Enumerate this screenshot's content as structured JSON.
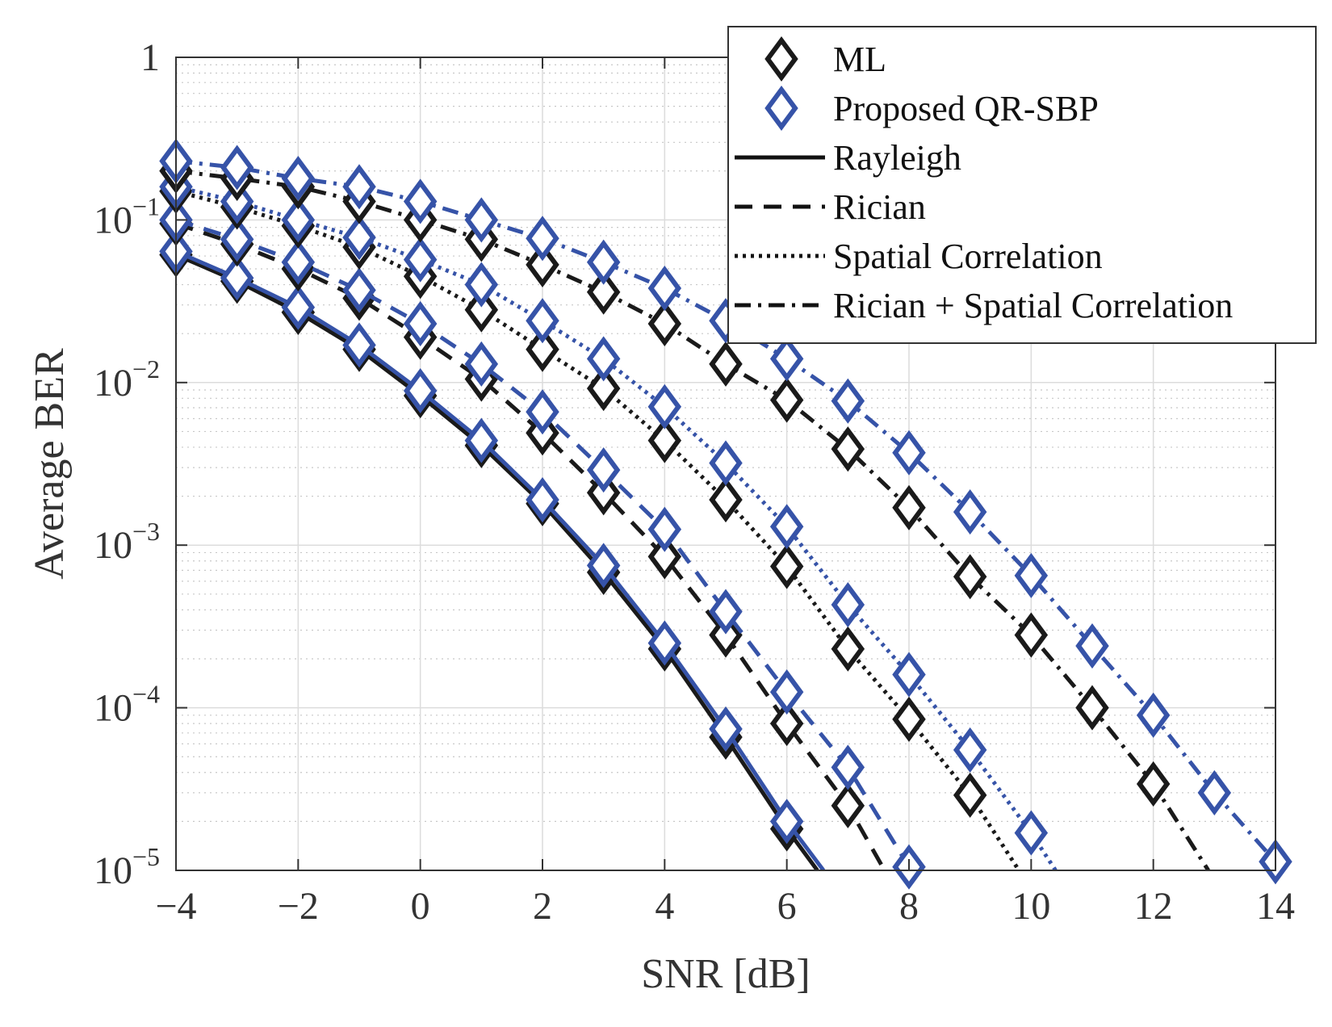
{
  "chart_data": {
    "type": "line",
    "xlabel": "SNR [dB]",
    "ylabel": "Average BER",
    "xlim": [
      -4,
      14
    ],
    "ylim": [
      1e-05,
      1
    ],
    "yscale": "log",
    "grid": true,
    "minor_grid": true,
    "legend_position": "top-right",
    "xticks": [
      -4,
      -2,
      0,
      2,
      4,
      6,
      8,
      10,
      12,
      14
    ],
    "xtick_labels": [
      "−4",
      "−2",
      "0",
      "2",
      "4",
      "6",
      "8",
      "10",
      "12",
      "14"
    ],
    "yticks": [
      {
        "value": 1,
        "base": "1",
        "exp": ""
      },
      {
        "value": 0.1,
        "base": "10",
        "exp": "−1"
      },
      {
        "value": 0.01,
        "base": "10",
        "exp": "−2"
      },
      {
        "value": 0.001,
        "base": "10",
        "exp": "−3"
      },
      {
        "value": 0.0001,
        "base": "10",
        "exp": "−4"
      },
      {
        "value": 1e-05,
        "base": "10",
        "exp": "−5"
      }
    ],
    "legend": [
      {
        "label": "ML",
        "kind": "marker",
        "color": "#1a1a1a"
      },
      {
        "label": "Proposed QR-SBP",
        "kind": "marker",
        "color": "#3653a8"
      },
      {
        "label": "Rayleigh",
        "kind": "line",
        "dash": "solid"
      },
      {
        "label": "Rician",
        "kind": "line",
        "dash": "dashed"
      },
      {
        "label": "Spatial Correlation",
        "kind": "line",
        "dash": "dotted"
      },
      {
        "label": "Rician + Spatial Correlation",
        "kind": "line",
        "dash": "dashdot"
      }
    ],
    "series": [
      {
        "detector": "ML",
        "channel": "Rayleigh",
        "color": "#1a1a1a",
        "dash": "solid",
        "x": [
          -4,
          -3,
          -2,
          -1,
          0,
          1,
          2,
          3,
          4,
          5,
          6,
          6.5
        ],
        "y": [
          0.061,
          0.042,
          0.027,
          0.016,
          0.0083,
          0.0041,
          0.0018,
          0.00068,
          0.00023,
          6.6e-05,
          1.8e-05,
          1e-05
        ],
        "markers": 11
      },
      {
        "detector": "Proposed QR-SBP",
        "channel": "Rayleigh",
        "color": "#3653a8",
        "dash": "solid",
        "x": [
          -4,
          -3,
          -2,
          -1,
          0,
          1,
          2,
          3,
          4,
          5,
          6,
          6.6
        ],
        "y": [
          0.064,
          0.044,
          0.029,
          0.017,
          0.0089,
          0.0044,
          0.0019,
          0.00075,
          0.00025,
          7.4e-05,
          2e-05,
          1e-05
        ],
        "markers": 11
      },
      {
        "detector": "ML",
        "channel": "Rician",
        "color": "#1a1a1a",
        "dash": "dashed",
        "x": [
          -4,
          -3,
          -2,
          -1,
          0,
          1,
          2,
          3,
          4,
          5,
          6,
          7,
          7.6
        ],
        "y": [
          0.095,
          0.071,
          0.05,
          0.033,
          0.019,
          0.0105,
          0.0049,
          0.0021,
          0.00085,
          0.00028,
          8e-05,
          2.5e-05,
          1e-05
        ],
        "markers": 12
      },
      {
        "detector": "Proposed QR-SBP",
        "channel": "Rician",
        "color": "#3653a8",
        "dash": "dashed",
        "x": [
          -4,
          -3,
          -2,
          -1,
          0,
          1,
          2,
          3,
          4,
          5,
          6,
          7,
          8
        ],
        "y": [
          0.1,
          0.076,
          0.055,
          0.037,
          0.023,
          0.013,
          0.0066,
          0.0029,
          0.00125,
          0.00039,
          0.000125,
          4.3e-05,
          1.05e-05
        ],
        "markers": 13
      },
      {
        "detector": "ML",
        "channel": "Spatial Correlation",
        "color": "#1a1a1a",
        "dash": "dotted",
        "x": [
          -4,
          -3,
          -2,
          -1,
          0,
          1,
          2,
          3,
          4,
          5,
          6,
          7,
          8,
          9,
          9.8
        ],
        "y": [
          0.15,
          0.12,
          0.092,
          0.068,
          0.045,
          0.028,
          0.016,
          0.0092,
          0.0044,
          0.0019,
          0.00074,
          0.00023,
          8.5e-05,
          2.9e-05,
          1e-05
        ],
        "markers": 14
      },
      {
        "detector": "Proposed QR-SBP",
        "channel": "Spatial Correlation",
        "color": "#3653a8",
        "dash": "dotted",
        "x": [
          -4,
          -3,
          -2,
          -1,
          0,
          1,
          2,
          3,
          4,
          5,
          6,
          7,
          8,
          9,
          10,
          10.4
        ],
        "y": [
          0.16,
          0.13,
          0.1,
          0.078,
          0.057,
          0.04,
          0.024,
          0.014,
          0.0071,
          0.0032,
          0.0013,
          0.00043,
          0.00016,
          5.5e-05,
          1.7e-05,
          1e-05
        ],
        "markers": 15
      },
      {
        "detector": "ML",
        "channel": "Rician + Spatial Correlation",
        "color": "#1a1a1a",
        "dash": "dashdot",
        "x": [
          -4,
          -3,
          -2,
          -1,
          0,
          1,
          2,
          3,
          4,
          5,
          6,
          7,
          8,
          9,
          10,
          11,
          12,
          12.9
        ],
        "y": [
          0.2,
          0.18,
          0.16,
          0.13,
          0.1,
          0.076,
          0.053,
          0.036,
          0.023,
          0.013,
          0.0078,
          0.0039,
          0.0017,
          0.00064,
          0.00028,
          0.0001,
          3.4e-05,
          1e-05
        ],
        "markers": 17
      },
      {
        "detector": "Proposed QR-SBP",
        "channel": "Rician + Spatial Correlation",
        "color": "#3653a8",
        "dash": "dashdot",
        "x": [
          -4,
          -3,
          -2,
          -1,
          0,
          1,
          2,
          3,
          4,
          5,
          6,
          7,
          8,
          9,
          10,
          11,
          12,
          13,
          14
        ],
        "y": [
          0.23,
          0.21,
          0.18,
          0.16,
          0.13,
          0.1,
          0.077,
          0.055,
          0.038,
          0.024,
          0.014,
          0.0077,
          0.0037,
          0.0016,
          0.00065,
          0.00024,
          9e-05,
          3e-05,
          1.13e-05
        ],
        "markers": 19
      }
    ]
  }
}
